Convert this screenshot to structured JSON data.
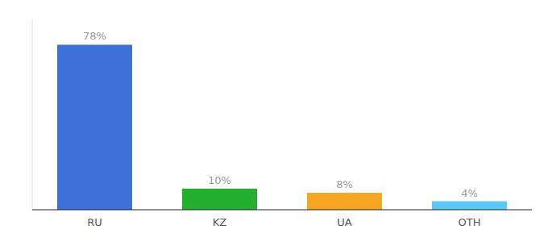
{
  "chart_data": {
    "type": "bar",
    "categories": [
      "RU",
      "KZ",
      "UA",
      "OTH"
    ],
    "values": [
      78,
      10,
      8,
      4
    ],
    "value_labels": [
      "78%",
      "10%",
      "8%",
      "4%"
    ],
    "colors": [
      "#3d6fd9",
      "#22b02e",
      "#f5a623",
      "#5bc8f5"
    ],
    "ylim": [
      0,
      90
    ],
    "data_labels": true,
    "tick_labels": "x",
    "grid": false
  }
}
